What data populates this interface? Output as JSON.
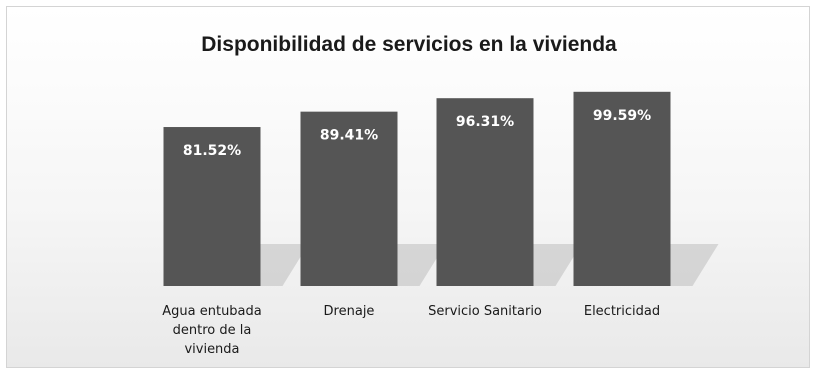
{
  "chart_data": {
    "type": "bar",
    "title": "Disponibilidad de servicios en la vivienda",
    "categories": [
      [
        "Agua entubada",
        "dentro de la",
        "vivienda"
      ],
      [
        "Drenaje"
      ],
      [
        "Servicio Sanitario"
      ],
      [
        "Electricidad"
      ]
    ],
    "values": [
      81.52,
      89.41,
      96.31,
      99.59
    ],
    "data_labels": [
      "81.52%",
      "89.41%",
      "96.31%",
      "99.59%"
    ],
    "ylim": [
      0,
      100
    ],
    "grid": false,
    "legend": "none",
    "bar_color": "#555555"
  }
}
